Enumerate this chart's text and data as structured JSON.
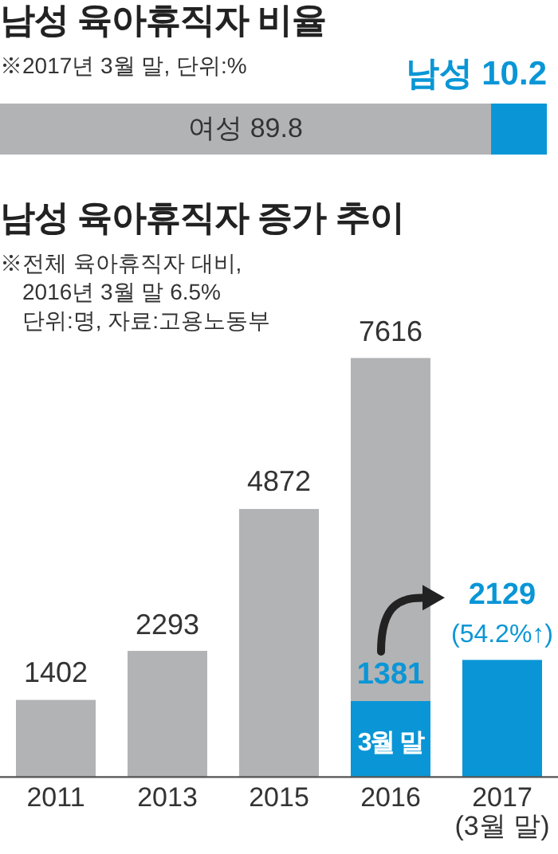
{
  "chart_data": [
    {
      "type": "bar",
      "title": "남성 육아휴직자 비율",
      "subtitle": "※2017년 3월 말, 단위:%",
      "orientation": "horizontal",
      "stacked": true,
      "categories": [
        null
      ],
      "tick_labels": false,
      "data_labels": true,
      "series": [
        {
          "name": "여성",
          "color": "#b2b3b5",
          "values": [
            89.8
          ]
        },
        {
          "name": "남성",
          "color": "#0a96d6",
          "values": [
            10.2
          ]
        }
      ]
    },
    {
      "type": "bar",
      "title": "남성 육아휴직자 증가 추이",
      "subtitle": "※전체 육아휴직자 대비, 2016년 3월 말 6.5%",
      "categories": [
        "2011",
        "2013",
        "2015",
        "2016",
        "2017 (3월 말)"
      ],
      "tick_labels": "x",
      "data_labels": true,
      "annotations": [
        "단위:명, 자료:고용노동부",
        {
          "text": "(54.2%↑)",
          "x": "2017 (3월 말)",
          "y": 2129
        }
      ],
      "series": [
        {
          "color": "#b2b3b5",
          "values": [
            1402,
            2293,
            4872,
            7616,
            null
          ]
        },
        {
          "name": "3월 말",
          "color": "#0a96d6",
          "values": [
            null,
            null,
            null,
            1381,
            2129
          ]
        }
      ]
    }
  ]
}
